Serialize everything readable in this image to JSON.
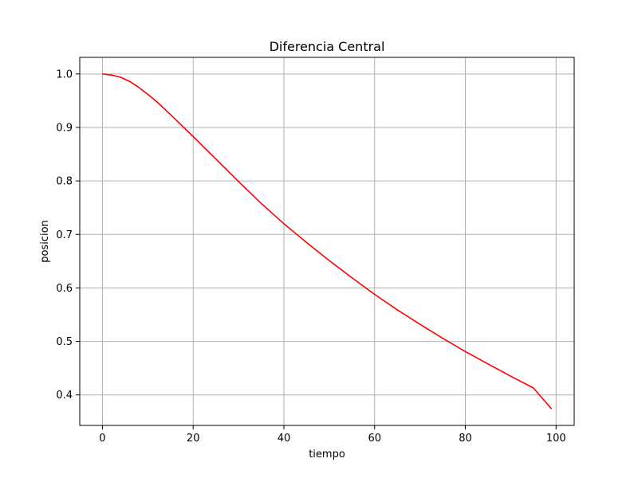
{
  "chart_data": {
    "type": "line",
    "title": "Diferencia Central",
    "xlabel": "tiempo",
    "ylabel": "posicion",
    "xlim": [
      -5,
      104
    ],
    "ylim": [
      0.343,
      1.031
    ],
    "xticks": [
      0,
      20,
      40,
      60,
      80,
      100
    ],
    "xtick_labels": [
      "0",
      "20",
      "40",
      "60",
      "80",
      "100"
    ],
    "yticks": [
      0.4,
      0.5,
      0.6,
      0.7,
      0.8,
      0.9,
      1.0
    ],
    "ytick_labels": [
      "0.4",
      "0.5",
      "0.6",
      "0.7",
      "0.8",
      "0.9",
      "1.0"
    ],
    "grid": true,
    "series": [
      {
        "color": "#ff0000",
        "x": [
          0,
          2,
          4,
          6,
          8,
          10,
          12,
          15,
          20,
          25,
          30,
          35,
          40,
          45,
          50,
          55,
          60,
          65,
          70,
          75,
          80,
          85,
          90,
          95,
          99
        ],
        "y": [
          1.0,
          0.998,
          0.994,
          0.986,
          0.975,
          0.962,
          0.948,
          0.924,
          0.883,
          0.841,
          0.799,
          0.758,
          0.72,
          0.685,
          0.651,
          0.619,
          0.588,
          0.559,
          0.532,
          0.506,
          0.481,
          0.458,
          0.435,
          0.413,
          0.374
        ]
      }
    ]
  }
}
